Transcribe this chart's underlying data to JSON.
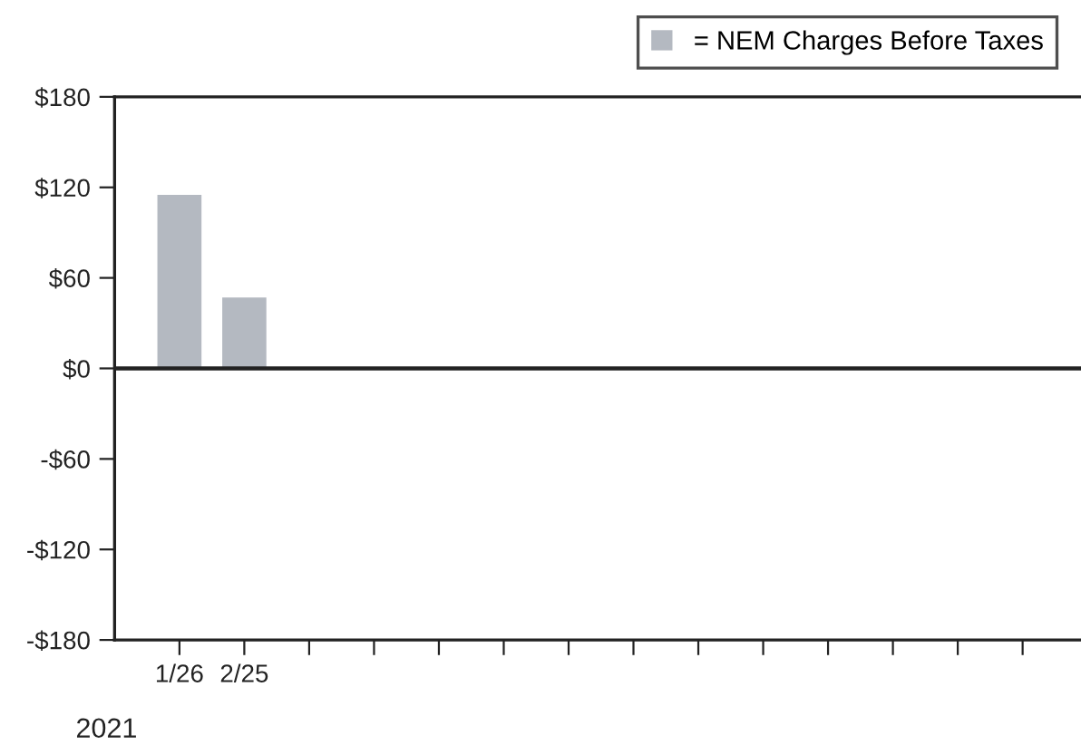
{
  "chart_data": {
    "type": "bar",
    "categories": [
      "1/26",
      "2/25",
      null,
      null,
      null,
      null,
      null,
      null,
      null,
      null,
      null,
      null,
      null,
      null
    ],
    "series": [
      {
        "name": "= NEM Charges Before Taxes",
        "color": "#b4b9c1",
        "values": [
          115,
          47,
          null,
          null,
          null,
          null,
          null,
          null,
          null,
          null,
          null,
          null,
          null,
          null
        ]
      }
    ],
    "ylim": [
      -180,
      180
    ],
    "yticks": [
      {
        "value": -180,
        "label": "-$180"
      },
      {
        "value": -120,
        "label": "-$120"
      },
      {
        "value": -60,
        "label": "-$60"
      },
      {
        "value": 0,
        "label": "$0"
      },
      {
        "value": 60,
        "label": "$60"
      },
      {
        "value": 120,
        "label": "$120"
      },
      {
        "value": 180,
        "label": "$180"
      }
    ],
    "ref_lines": [
      {
        "axis": "y",
        "value": 0,
        "color": "#222222"
      }
    ],
    "annotations": [
      "2021"
    ],
    "legend": "top right",
    "grid": false
  }
}
